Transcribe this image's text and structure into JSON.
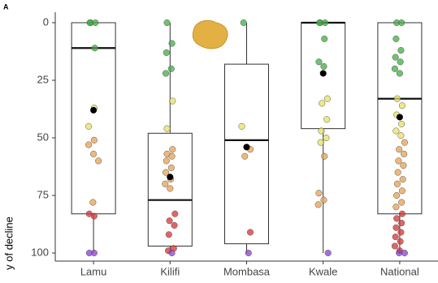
{
  "chart_data": {
    "type": "box",
    "panel_label": "A",
    "y_label": "y of decline",
    "ylim": [
      0,
      100
    ],
    "y_reversed": true,
    "yticks": [
      0,
      25,
      50,
      75,
      100
    ],
    "mean_color": "#000000",
    "groups": [
      {
        "category": "Lamu",
        "whisker_low": 0,
        "q1": 0,
        "median": 11,
        "q3": 83,
        "whisker_high": 100,
        "mean": 38,
        "point_groups": [
          {
            "color": "#3fae3f",
            "values": [
              0,
              0,
              0,
              11
            ]
          },
          {
            "color": "#e8e060",
            "values": [
              37,
              45
            ]
          },
          {
            "color": "#e8a050",
            "values": [
              51,
              53,
              57,
              60,
              78
            ]
          },
          {
            "color": "#d83030",
            "values": [
              83,
              84
            ]
          },
          {
            "color": "#8a3fd0",
            "values": [
              100,
              100
            ]
          }
        ]
      },
      {
        "category": "Kilifi",
        "whisker_low": 0,
        "q1": 48,
        "median": 77,
        "q3": 97,
        "whisker_high": 100,
        "mean": 67,
        "point_groups": [
          {
            "color": "#3fae3f",
            "values": [
              0,
              9,
              13,
              20,
              22
            ]
          },
          {
            "color": "#e8e060",
            "values": [
              34,
              46
            ]
          },
          {
            "color": "#e8a050",
            "values": [
              55,
              57,
              58,
              60,
              63,
              65,
              68,
              70,
              72
            ]
          },
          {
            "color": "#d83030",
            "values": [
              83,
              86,
              88,
              92,
              98,
              99
            ]
          },
          {
            "color": "#8a3fd0",
            "values": [
              100
            ]
          }
        ]
      },
      {
        "category": "Mombasa",
        "whisker_low": 0,
        "q1": 18,
        "median": 51,
        "q3": 96,
        "whisker_high": 100,
        "mean": 54,
        "point_groups": [
          {
            "color": "#3fae3f",
            "values": [
              0
            ]
          },
          {
            "color": "#e8e060",
            "values": [
              45
            ]
          },
          {
            "color": "#e8a050",
            "values": [
              55,
              58
            ]
          },
          {
            "color": "#d83030",
            "values": [
              91
            ]
          },
          {
            "color": "#8a3fd0",
            "values": [
              100
            ]
          }
        ]
      },
      {
        "category": "Kwale",
        "whisker_low": 0,
        "q1": 0,
        "median": 0,
        "q3": 46,
        "whisker_high": 100,
        "mean": 22,
        "point_groups": [
          {
            "color": "#3fae3f",
            "values": [
              0,
              0,
              0,
              7,
              17,
              19
            ]
          },
          {
            "color": "#e8e060",
            "values": [
              33,
              35,
              42,
              47,
              50,
              52
            ]
          },
          {
            "color": "#e8a050",
            "values": [
              58,
              74,
              77,
              79
            ]
          },
          {
            "color": "#8a3fd0",
            "values": [
              100
            ]
          }
        ]
      },
      {
        "category": "National",
        "whisker_low": 0,
        "q1": 0,
        "median": 33,
        "q3": 83,
        "whisker_high": 100,
        "mean": 41,
        "point_groups": [
          {
            "color": "#3fae3f",
            "values": [
              0,
              0,
              7,
              12,
              15,
              17,
              20,
              22
            ]
          },
          {
            "color": "#e8e060",
            "values": [
              33,
              36,
              40,
              44,
              47,
              49
            ]
          },
          {
            "color": "#e8a050",
            "values": [
              52,
              55,
              57,
              60,
              62,
              65,
              68,
              70,
              73,
              75,
              78,
              80
            ]
          },
          {
            "color": "#d83030",
            "values": [
              83,
              85,
              87,
              89,
              91,
              93,
              95,
              97,
              99
            ]
          },
          {
            "color": "#8a3fd0",
            "values": [
              100,
              100
            ]
          }
        ]
      }
    ]
  }
}
